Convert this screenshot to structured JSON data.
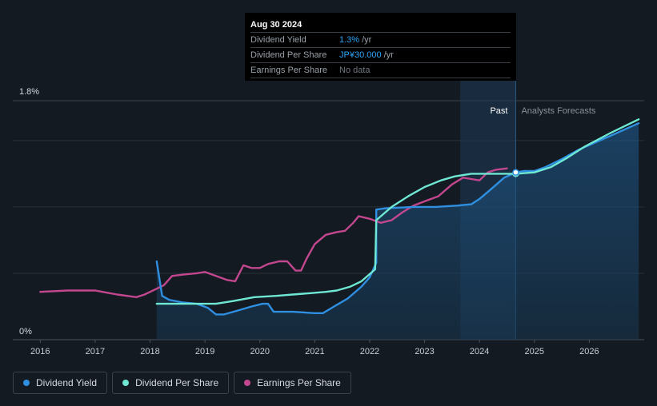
{
  "tooltip": {
    "date": "Aug 30 2024",
    "rows": [
      {
        "label": "Dividend Yield",
        "value": "1.3%",
        "unit": "/yr"
      },
      {
        "label": "Dividend Per Share",
        "value": "JP¥30.000",
        "unit": "/yr"
      },
      {
        "label": "Earnings Per Share",
        "value": "No data",
        "unit": ""
      }
    ]
  },
  "legend": [
    {
      "label": "Dividend Yield",
      "color": "#2f8fe0"
    },
    {
      "label": "Dividend Per Share",
      "color": "#6ee7d3"
    },
    {
      "label": "Earnings Per Share",
      "color": "#c2478e"
    }
  ],
  "chart_data": {
    "type": "line",
    "y_tick_labels": [
      "0%",
      "1.8%"
    ],
    "ylim": [
      0,
      1.8
    ],
    "x_tick_labels": [
      "2016",
      "2017",
      "2018",
      "2019",
      "2020",
      "2021",
      "2022",
      "2023",
      "2024",
      "2025",
      "2026"
    ],
    "xlim": [
      2015.5,
      2027.0
    ],
    "past_label": "Past",
    "forecast_label": "Analysts Forecasts",
    "past_band": [
      2023.65,
      2024.66
    ],
    "series": [
      {
        "name": "Dividend Yield",
        "color": "#2f8fe0",
        "points": [
          [
            2018.12,
            0.59
          ],
          [
            2018.22,
            0.33
          ],
          [
            2018.35,
            0.3
          ],
          [
            2018.6,
            0.28
          ],
          [
            2018.85,
            0.27
          ],
          [
            2019.05,
            0.24
          ],
          [
            2019.2,
            0.19
          ],
          [
            2019.35,
            0.19
          ],
          [
            2019.6,
            0.22
          ],
          [
            2019.85,
            0.25
          ],
          [
            2020.05,
            0.27
          ],
          [
            2020.15,
            0.27
          ],
          [
            2020.25,
            0.21
          ],
          [
            2020.6,
            0.21
          ],
          [
            2021.0,
            0.2
          ],
          [
            2021.15,
            0.2
          ],
          [
            2021.35,
            0.25
          ],
          [
            2021.6,
            0.31
          ],
          [
            2021.85,
            0.4
          ],
          [
            2022.0,
            0.47
          ],
          [
            2022.12,
            0.58
          ],
          [
            2022.12,
            0.98
          ],
          [
            2022.3,
            0.99
          ],
          [
            2022.8,
            1.0
          ],
          [
            2023.2,
            1.0
          ],
          [
            2023.6,
            1.01
          ],
          [
            2023.85,
            1.02
          ],
          [
            2024.0,
            1.06
          ],
          [
            2024.2,
            1.13
          ],
          [
            2024.45,
            1.22
          ],
          [
            2024.66,
            1.26
          ],
          [
            2024.8,
            1.27
          ],
          [
            2025.0,
            1.27
          ],
          [
            2025.2,
            1.3
          ],
          [
            2025.5,
            1.36
          ],
          [
            2025.8,
            1.43
          ],
          [
            2026.3,
            1.52
          ],
          [
            2026.9,
            1.63
          ]
        ]
      },
      {
        "name": "Dividend Per Share",
        "color": "#6ee7d3",
        "points": [
          [
            2018.12,
            0.27
          ],
          [
            2018.5,
            0.27
          ],
          [
            2018.9,
            0.27
          ],
          [
            2019.2,
            0.27
          ],
          [
            2019.5,
            0.29
          ],
          [
            2019.9,
            0.32
          ],
          [
            2020.3,
            0.33
          ],
          [
            2020.6,
            0.34
          ],
          [
            2020.9,
            0.35
          ],
          [
            2021.2,
            0.36
          ],
          [
            2021.4,
            0.37
          ],
          [
            2021.65,
            0.4
          ],
          [
            2021.85,
            0.44
          ],
          [
            2022.1,
            0.53
          ],
          [
            2022.12,
            0.9
          ],
          [
            2022.4,
            1.0
          ],
          [
            2022.7,
            1.08
          ],
          [
            2023.0,
            1.15
          ],
          [
            2023.3,
            1.2
          ],
          [
            2023.55,
            1.23
          ],
          [
            2023.85,
            1.25
          ],
          [
            2024.2,
            1.25
          ],
          [
            2024.66,
            1.25
          ],
          [
            2025.0,
            1.26
          ],
          [
            2025.3,
            1.3
          ],
          [
            2025.6,
            1.37
          ],
          [
            2025.9,
            1.45
          ],
          [
            2026.4,
            1.56
          ],
          [
            2026.9,
            1.66
          ]
        ]
      },
      {
        "name": "Earnings Per Share",
        "color": "#c2478e",
        "points": [
          [
            2016.0,
            0.36
          ],
          [
            2016.5,
            0.37
          ],
          [
            2017.0,
            0.37
          ],
          [
            2017.4,
            0.34
          ],
          [
            2017.75,
            0.32
          ],
          [
            2017.9,
            0.34
          ],
          [
            2018.1,
            0.38
          ],
          [
            2018.25,
            0.41
          ],
          [
            2018.4,
            0.48
          ],
          [
            2018.6,
            0.49
          ],
          [
            2018.85,
            0.5
          ],
          [
            2019.0,
            0.51
          ],
          [
            2019.2,
            0.48
          ],
          [
            2019.4,
            0.45
          ],
          [
            2019.55,
            0.44
          ],
          [
            2019.7,
            0.56
          ],
          [
            2019.85,
            0.54
          ],
          [
            2020.0,
            0.54
          ],
          [
            2020.15,
            0.57
          ],
          [
            2020.35,
            0.59
          ],
          [
            2020.5,
            0.59
          ],
          [
            2020.65,
            0.52
          ],
          [
            2020.75,
            0.52
          ],
          [
            2020.85,
            0.61
          ],
          [
            2021.0,
            0.72
          ],
          [
            2021.2,
            0.79
          ],
          [
            2021.4,
            0.81
          ],
          [
            2021.55,
            0.82
          ],
          [
            2021.7,
            0.88
          ],
          [
            2021.8,
            0.93
          ],
          [
            2022.0,
            0.91
          ],
          [
            2022.2,
            0.88
          ],
          [
            2022.4,
            0.9
          ],
          [
            2022.6,
            0.96
          ],
          [
            2022.8,
            1.01
          ],
          [
            2023.05,
            1.05
          ],
          [
            2023.25,
            1.08
          ],
          [
            2023.5,
            1.17
          ],
          [
            2023.7,
            1.22
          ],
          [
            2023.85,
            1.21
          ],
          [
            2024.0,
            1.2
          ],
          [
            2024.15,
            1.26
          ],
          [
            2024.3,
            1.28
          ],
          [
            2024.5,
            1.29
          ]
        ]
      }
    ],
    "markers": [
      {
        "series": "Dividend Per Share",
        "x": 2024.66,
        "y": 1.25
      },
      {
        "series": "Dividend Yield",
        "x": 2024.66,
        "y": 1.26
      }
    ]
  }
}
